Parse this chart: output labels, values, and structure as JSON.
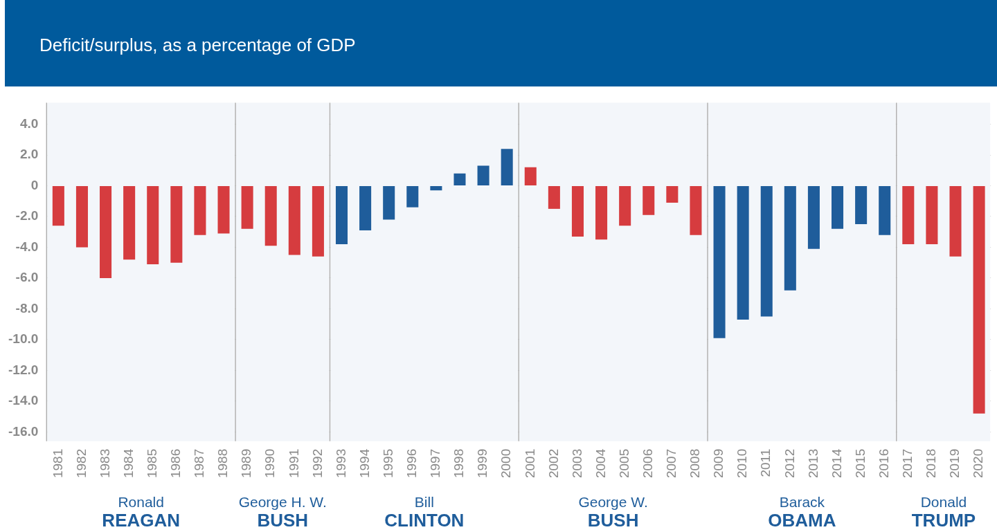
{
  "chart_data": {
    "type": "bar",
    "title": "Deficit/surplus, as a percentage of GDP",
    "categories": [
      "1981",
      "1982",
      "1983",
      "1984",
      "1985",
      "1986",
      "1987",
      "1988",
      "1989",
      "1990",
      "1991",
      "1992",
      "1993",
      "1994",
      "1995",
      "1996",
      "1997",
      "1998",
      "1999",
      "2000",
      "2001",
      "2002",
      "2003",
      "2004",
      "2005",
      "2006",
      "2007",
      "2008",
      "2009",
      "2010",
      "2011",
      "2012",
      "2013",
      "2014",
      "2015",
      "2016",
      "2017",
      "2018",
      "2019",
      "2020"
    ],
    "values": [
      -2.6,
      -4.0,
      -6.0,
      -4.8,
      -5.1,
      -5.0,
      -3.2,
      -3.1,
      -2.8,
      -3.9,
      -4.5,
      -4.6,
      -3.8,
      -2.9,
      -2.2,
      -1.4,
      -0.3,
      0.8,
      1.3,
      2.4,
      1.2,
      -1.5,
      -3.3,
      -3.5,
      -2.6,
      -1.9,
      -1.1,
      -3.2,
      -9.9,
      -8.7,
      -8.5,
      -6.8,
      -4.1,
      -2.8,
      -2.5,
      -3.2,
      -3.8,
      -3.8,
      -4.6,
      -14.8
    ],
    "colors": [
      "#d63c3f",
      "#d63c3f",
      "#d63c3f",
      "#d63c3f",
      "#d63c3f",
      "#d63c3f",
      "#d63c3f",
      "#d63c3f",
      "#d63c3f",
      "#d63c3f",
      "#d63c3f",
      "#d63c3f",
      "#1f5d9b",
      "#1f5d9b",
      "#1f5d9b",
      "#1f5d9b",
      "#1f5d9b",
      "#1f5d9b",
      "#1f5d9b",
      "#1f5d9b",
      "#d63c3f",
      "#d63c3f",
      "#d63c3f",
      "#d63c3f",
      "#d63c3f",
      "#d63c3f",
      "#d63c3f",
      "#d63c3f",
      "#1f5d9b",
      "#1f5d9b",
      "#1f5d9b",
      "#1f5d9b",
      "#1f5d9b",
      "#1f5d9b",
      "#1f5d9b",
      "#1f5d9b",
      "#d63c3f",
      "#d63c3f",
      "#d63c3f",
      "#d63c3f"
    ],
    "ylim": [
      -16.6,
      5.4
    ],
    "yticks": [
      {
        "value": 4,
        "label": "4.0"
      },
      {
        "value": 2,
        "label": "2.0"
      },
      0,
      {
        "value": -2,
        "label": "-2.0"
      },
      {
        "value": -4,
        "label": "-4.0"
      },
      {
        "value": -6,
        "label": "-6.0"
      },
      {
        "value": -8,
        "label": "-8.0"
      },
      {
        "value": -10,
        "label": "-10.0"
      },
      {
        "value": -12,
        "label": "-12.0"
      },
      {
        "value": -14,
        "label": "-14.0"
      },
      {
        "value": -16,
        "label": "-16.0"
      }
    ],
    "grid": "y",
    "bands": [
      {
        "axis": "x",
        "from": "1981",
        "to": "1988",
        "label": "Ronald\nREAGAN",
        "color": "#f3f6fa"
      },
      {
        "axis": "x",
        "from": "1989",
        "to": "1992",
        "label": "George H. W.\nBUSH",
        "color": "#f3f6fa"
      },
      {
        "axis": "x",
        "from": "1993",
        "to": "2000",
        "label": "Bill\nCLINTON",
        "color": "#f3f6fa"
      },
      {
        "axis": "x",
        "from": "2001",
        "to": "2008",
        "label": "George W.\nBUSH",
        "color": "#f3f6fa"
      },
      {
        "axis": "x",
        "from": "2009",
        "to": "2016",
        "label": "Barack\nOBAMA",
        "color": "#f3f6fa"
      },
      {
        "axis": "x",
        "from": "2017",
        "to": "2020",
        "label": "Donald\nTRUMP",
        "color": "#f3f6fa"
      }
    ]
  }
}
